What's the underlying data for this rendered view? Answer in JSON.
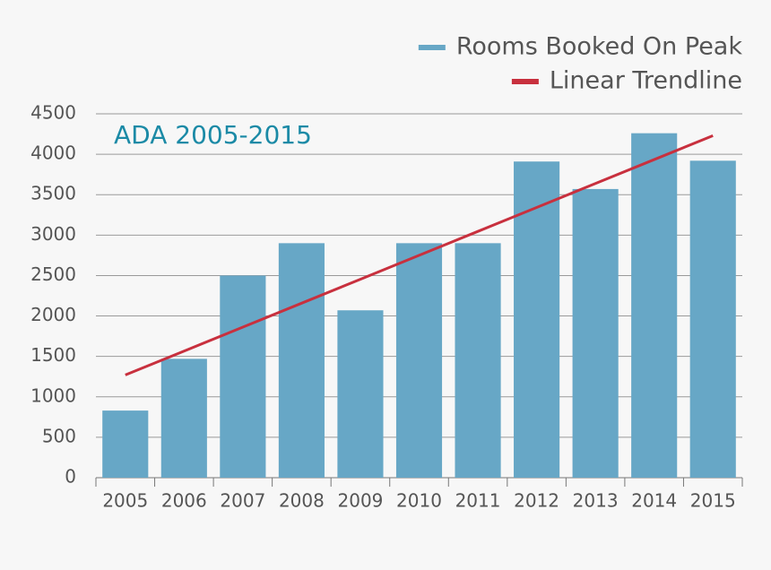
{
  "chart_data": {
    "type": "bar",
    "annotation": "ADA 2005-2015",
    "categories": [
      "2005",
      "2006",
      "2007",
      "2008",
      "2009",
      "2010",
      "2011",
      "2012",
      "2013",
      "2014",
      "2015"
    ],
    "series": [
      {
        "name": "Rooms Booked On Peak",
        "type": "bar",
        "color": "#67a7c6",
        "values": [
          830,
          1470,
          2500,
          2900,
          2070,
          2900,
          2900,
          3910,
          3570,
          4260,
          3920
        ]
      },
      {
        "name": "Linear Trendline",
        "type": "line",
        "color": "#c8303e",
        "values": [
          1270,
          1566,
          1862,
          2158,
          2454,
          2750,
          3046,
          3342,
          3638,
          3934,
          4230
        ]
      }
    ],
    "ylim": [
      0,
      4500
    ],
    "yticks": [
      0,
      500,
      1000,
      1500,
      2000,
      2500,
      3000,
      3500,
      4000,
      4500
    ],
    "grid": true,
    "legend": "top-right"
  }
}
